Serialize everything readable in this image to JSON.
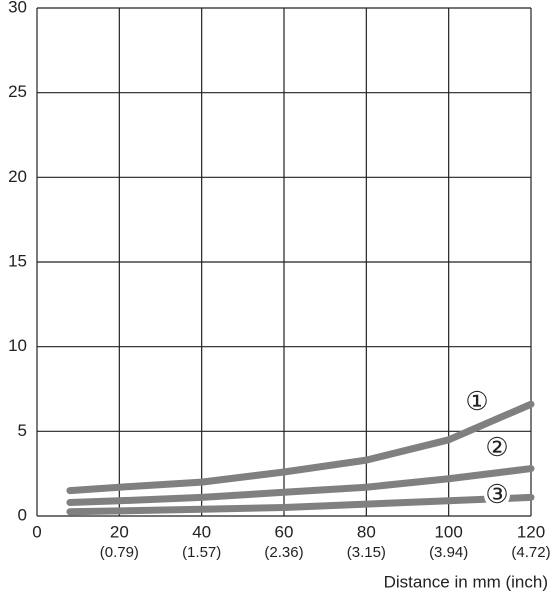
{
  "chart_data": {
    "type": "line",
    "x": [
      8,
      20,
      40,
      60,
      80,
      100,
      120
    ],
    "series": [
      {
        "name": "①",
        "color": "#808080",
        "values": [
          1.5,
          1.7,
          2.0,
          2.6,
          3.3,
          4.5,
          6.6
        ]
      },
      {
        "name": "②",
        "color": "#808080",
        "values": [
          0.8,
          0.9,
          1.1,
          1.4,
          1.7,
          2.2,
          2.8
        ]
      },
      {
        "name": "③",
        "color": "#808080",
        "values": [
          0.25,
          0.3,
          0.4,
          0.5,
          0.7,
          0.9,
          1.1
        ]
      }
    ],
    "xlim": [
      0,
      120
    ],
    "xticks": [
      0,
      20,
      40,
      60,
      80,
      100,
      120
    ],
    "xtick_sublabels": [
      "(0.79)",
      "(1.57)",
      "(2.36)",
      "(3.15)",
      "(3.94)",
      "(4.72)"
    ],
    "ylim": [
      0,
      30
    ],
    "yticks": [
      0,
      5,
      10,
      15,
      20,
      25,
      30
    ],
    "xlabel": "Distance in mm (inch)",
    "grid": true
  }
}
